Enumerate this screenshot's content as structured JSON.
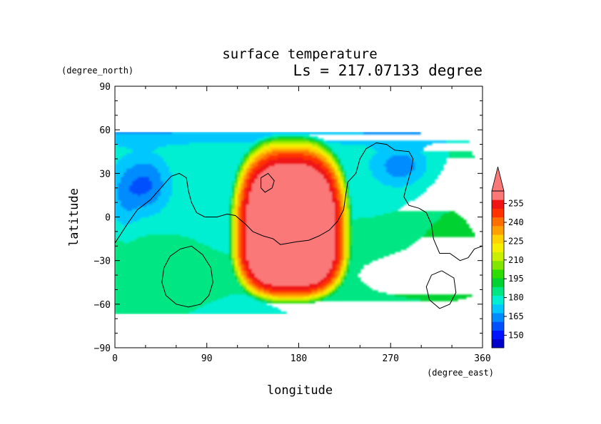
{
  "chart_data": {
    "type": "heatmap",
    "title": "surface temperature",
    "subtitle": "Ls = 217.07133 degree",
    "xlabel": "longitude",
    "ylabel": "latitude",
    "x_units": "(degree_east)",
    "y_units": "(degree_north)",
    "xlim": [
      0,
      360
    ],
    "ylim": [
      -90,
      90
    ],
    "data_lat_range": [
      -85,
      85
    ],
    "x_ticks": [
      "0",
      "90",
      "180",
      "270",
      "360"
    ],
    "y_ticks": [
      "90",
      "60",
      "30",
      "0",
      "−30",
      "−60",
      "−90"
    ],
    "x_tick_values": [
      0,
      90,
      180,
      270,
      360
    ],
    "y_tick_values": [
      90,
      60,
      30,
      0,
      -30,
      -60,
      -90
    ],
    "colorbar": {
      "min": 140,
      "max": 265,
      "step": 7.5,
      "extend": "max",
      "tick_labels": [
        "255",
        "240",
        "225",
        "210",
        "195",
        "180",
        "165",
        "150"
      ],
      "tick_values": [
        255,
        240,
        225,
        210,
        195,
        180,
        165,
        150
      ],
      "colors": [
        "#0000c8",
        "#0014ff",
        "#0050ff",
        "#008cff",
        "#00c8ff",
        "#00eed2",
        "#00e682",
        "#00d232",
        "#2ddc00",
        "#82e600",
        "#c8f000",
        "#f5f000",
        "#ffd200",
        "#ffa000",
        "#ff6e00",
        "#ff3200",
        "#f01414",
        "#fa7878"
      ]
    },
    "features": {
      "hot_region": {
        "lon_center": 172,
        "lat_center": -15,
        "lon_halfwidth": 68,
        "lat_north": 65,
        "lat_south": -66,
        "peak": 275
      },
      "polar_band_south_lat": -66,
      "polar_band_north_lat": 64
    },
    "coastlines": [
      [
        [
          0,
          -18
        ],
        [
          12,
          -5
        ],
        [
          22,
          5
        ],
        [
          35,
          12
        ],
        [
          45,
          20
        ],
        [
          55,
          28
        ],
        [
          63,
          30
        ],
        [
          70,
          27
        ],
        [
          72,
          18
        ],
        [
          75,
          10
        ],
        [
          80,
          3
        ],
        [
          88,
          0
        ],
        [
          100,
          0
        ],
        [
          110,
          2
        ],
        [
          118,
          1
        ],
        [
          128,
          -5
        ],
        [
          135,
          -10
        ],
        [
          145,
          -13
        ],
        [
          155,
          -15
        ],
        [
          162,
          -19
        ],
        [
          170,
          -18
        ],
        [
          178,
          -17
        ],
        [
          190,
          -16
        ],
        [
          200,
          -13
        ],
        [
          210,
          -9
        ],
        [
          218,
          -3
        ],
        [
          224,
          5
        ],
        [
          226,
          15
        ],
        [
          228,
          24
        ],
        [
          236,
          30
        ],
        [
          240,
          40
        ],
        [
          246,
          47
        ],
        [
          256,
          51
        ],
        [
          266,
          50
        ],
        [
          274,
          46
        ],
        [
          288,
          45
        ],
        [
          292,
          40
        ],
        [
          290,
          32
        ],
        [
          286,
          22
        ],
        [
          283,
          14
        ],
        [
          288,
          8
        ],
        [
          298,
          6
        ],
        [
          305,
          3
        ],
        [
          310,
          -5
        ],
        [
          312,
          -15
        ],
        [
          318,
          -25
        ],
        [
          328,
          -25
        ],
        [
          338,
          -30
        ],
        [
          346,
          -28
        ],
        [
          352,
          -22
        ],
        [
          360,
          -20
        ]
      ],
      [
        [
          75,
          -20
        ],
        [
          64,
          -22
        ],
        [
          54,
          -27
        ],
        [
          48,
          -35
        ],
        [
          46,
          -45
        ],
        [
          50,
          -54
        ],
        [
          60,
          -60
        ],
        [
          72,
          -62
        ],
        [
          84,
          -60
        ],
        [
          92,
          -54
        ],
        [
          96,
          -45
        ],
        [
          94,
          -35
        ],
        [
          86,
          -26
        ],
        [
          75,
          -20
        ]
      ],
      [
        [
          320,
          -37
        ],
        [
          310,
          -40
        ],
        [
          305,
          -48
        ],
        [
          308,
          -57
        ],
        [
          318,
          -63
        ],
        [
          328,
          -60
        ],
        [
          334,
          -52
        ],
        [
          332,
          -42
        ],
        [
          320,
          -37
        ]
      ],
      [
        [
          143,
          27
        ],
        [
          150,
          30
        ],
        [
          156,
          25
        ],
        [
          154,
          20
        ],
        [
          147,
          17
        ],
        [
          143,
          20
        ],
        [
          143,
          27
        ]
      ]
    ]
  }
}
